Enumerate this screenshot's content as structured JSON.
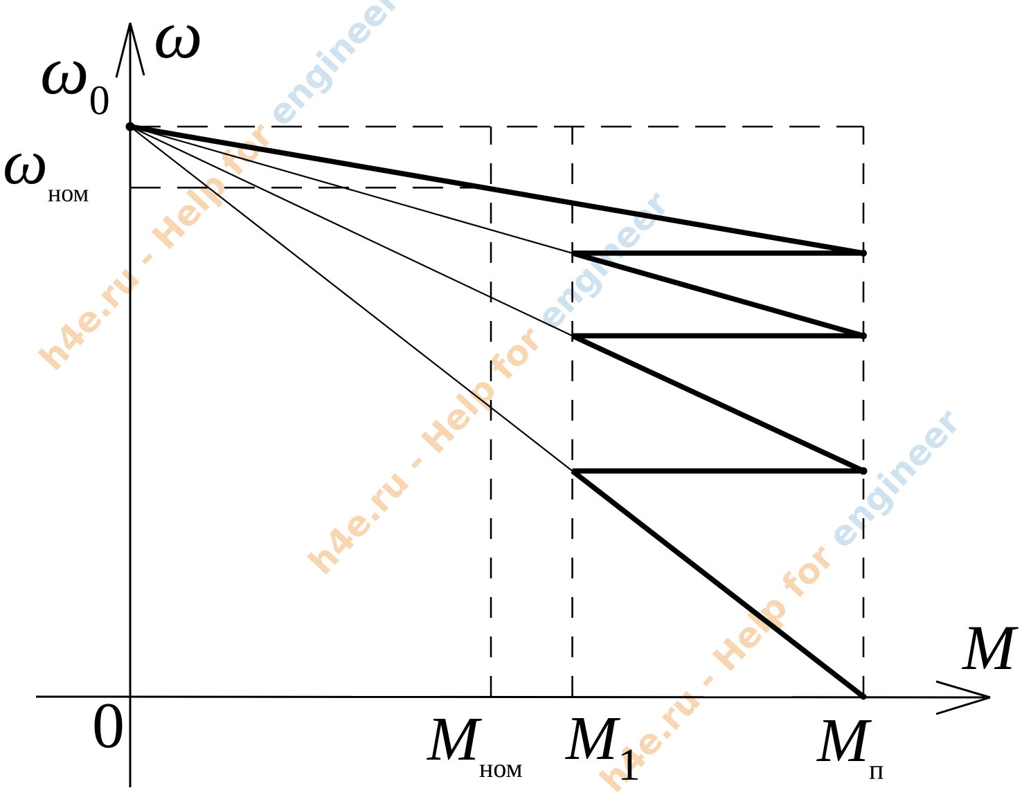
{
  "figure": {
    "y_axis_label": "ω",
    "x_axis_label": "M",
    "origin_label": "0",
    "y_axis_annotations": [
      {
        "main": "ω",
        "sub": "0"
      },
      {
        "main": "ω",
        "sub": "ном"
      }
    ],
    "x_axis_annotations": [
      {
        "main": "M",
        "sub": "ном"
      },
      {
        "main": "M",
        "sub": "1"
      },
      {
        "main": "M",
        "sub": "п"
      }
    ]
  },
  "watermark": {
    "text_orange": "h4e.ru - Help for ",
    "text_blue": "engineer",
    "color_orange": "#f6cfa4",
    "color_blue": "#c6ddee"
  },
  "chart_data": {
    "type": "line",
    "title": "",
    "xlabel": "M",
    "ylabel": "ω",
    "x_unit": "fraction of starting torque M_п",
    "y_unit": "fraction of no-load speed ω_0",
    "x_axis_ticks": [
      {
        "label": "0",
        "value": 0
      },
      {
        "label": "M_ном",
        "value": 0.492
      },
      {
        "label": "M_1",
        "value": 0.603
      },
      {
        "label": "M_п",
        "value": 1.0
      }
    ],
    "y_axis_ticks": [
      {
        "label": "ω_0",
        "value": 1.0
      },
      {
        "label": "ω_ном",
        "value": 0.893
      }
    ],
    "grid": false,
    "legend": false,
    "series": [
      {
        "name": "natural-characteristic",
        "style": "thick",
        "points": [
          [
            0,
            1.0
          ],
          [
            1.0,
            0.778
          ]
        ]
      },
      {
        "name": "stage-3-characteristic-thin",
        "style": "thin",
        "points": [
          [
            0,
            1.0
          ],
          [
            0.603,
            0.778
          ]
        ]
      },
      {
        "name": "stage-3-characteristic-traversed",
        "style": "thick",
        "points": [
          [
            0.603,
            0.778
          ],
          [
            1.0,
            0.633
          ]
        ]
      },
      {
        "name": "switch-3-torque-jump",
        "style": "thick",
        "points": [
          [
            0.603,
            0.778
          ],
          [
            1.0,
            0.778
          ]
        ]
      },
      {
        "name": "stage-2-characteristic-thin",
        "style": "thin",
        "points": [
          [
            0,
            1.0
          ],
          [
            0.603,
            0.633
          ]
        ]
      },
      {
        "name": "stage-2-characteristic-traversed",
        "style": "thick",
        "points": [
          [
            0.603,
            0.633
          ],
          [
            1.0,
            0.396
          ]
        ]
      },
      {
        "name": "switch-2-torque-jump",
        "style": "thick",
        "points": [
          [
            0.603,
            0.633
          ],
          [
            1.0,
            0.633
          ]
        ]
      },
      {
        "name": "stage-1-characteristic-thin",
        "style": "thin",
        "points": [
          [
            0,
            1.0
          ],
          [
            0.603,
            0.396
          ]
        ]
      },
      {
        "name": "stage-1-characteristic-traversed",
        "style": "thick",
        "points": [
          [
            0.603,
            0.396
          ],
          [
            1.0,
            0.0
          ]
        ]
      },
      {
        "name": "switch-1-torque-jump",
        "style": "thick",
        "points": [
          [
            0.603,
            0.396
          ],
          [
            1.0,
            0.396
          ]
        ]
      }
    ],
    "guide_lines": [
      {
        "name": "omega0-level-dashed",
        "from": [
          0,
          1.0
        ],
        "to": [
          1.0,
          1.0
        ]
      },
      {
        "name": "omega-nom-level-dashed",
        "from": [
          0,
          0.893
        ],
        "to": [
          0.492,
          0.893
        ]
      },
      {
        "name": "m-nom-vertical-dashed",
        "from": [
          0.492,
          0
        ],
        "to": [
          0.492,
          1.0
        ]
      },
      {
        "name": "m1-vertical-dashed",
        "from": [
          0.603,
          0
        ],
        "to": [
          0.603,
          1.0
        ]
      },
      {
        "name": "mp-vertical-dashed",
        "from": [
          1.0,
          0
        ],
        "to": [
          1.0,
          1.0
        ]
      }
    ],
    "markers": [
      {
        "name": "no-load-point",
        "x": 0,
        "y": 1.0,
        "r": 6.5
      },
      {
        "name": "junction-natural",
        "x": 1.0,
        "y": 0.778,
        "r": 5
      },
      {
        "name": "junction-stage-3",
        "x": 1.0,
        "y": 0.633,
        "r": 5
      },
      {
        "name": "junction-stage-2",
        "x": 1.0,
        "y": 0.396,
        "r": 5.5
      },
      {
        "name": "start-point",
        "x": 1.0,
        "y": 0.0,
        "r": 4.5
      }
    ]
  }
}
